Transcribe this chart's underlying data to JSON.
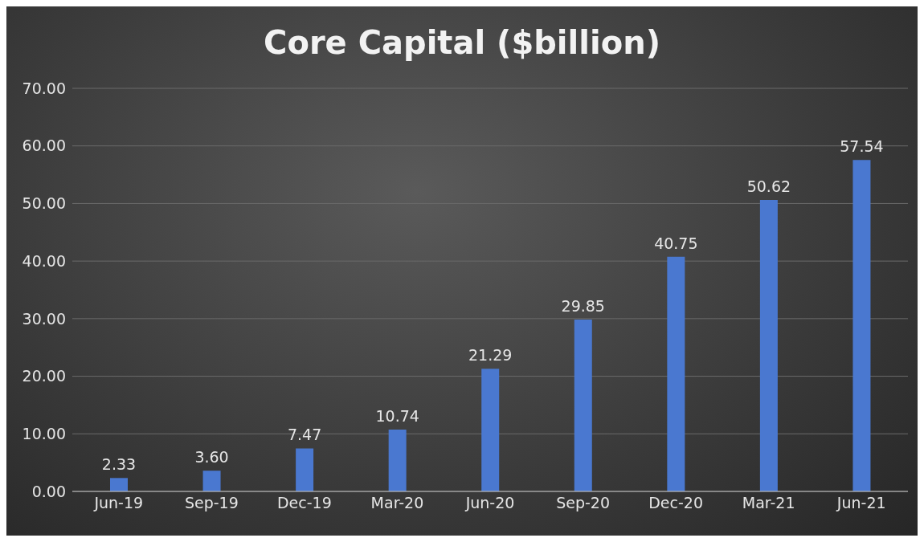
{
  "chart_data": {
    "type": "bar",
    "title": "Core Capital ($billion)",
    "categories": [
      "Jun-19",
      "Sep-19",
      "Dec-19",
      "Mar-20",
      "Jun-20",
      "Sep-20",
      "Dec-20",
      "Mar-21",
      "Jun-21"
    ],
    "values": [
      2.33,
      3.6,
      7.47,
      10.74,
      21.29,
      29.85,
      40.75,
      50.62,
      57.54
    ],
    "value_labels": [
      "2.33",
      "3.60",
      "7.47",
      "10.74",
      "21.29",
      "29.85",
      "40.75",
      "50.62",
      "57.54"
    ],
    "color": "#4a78d0",
    "ylim": [
      0,
      70
    ],
    "yticks": [
      {
        "value": 0,
        "label": "0.00"
      },
      {
        "value": 10,
        "label": "10.00"
      },
      {
        "value": 20,
        "label": "20.00"
      },
      {
        "value": 30,
        "label": "30.00"
      },
      {
        "value": 40,
        "label": "40.00"
      },
      {
        "value": 50,
        "label": "50.00"
      },
      {
        "value": 60,
        "label": "60.00"
      },
      {
        "value": 70,
        "label": "70.00"
      }
    ],
    "grid": "y",
    "legend": false
  }
}
